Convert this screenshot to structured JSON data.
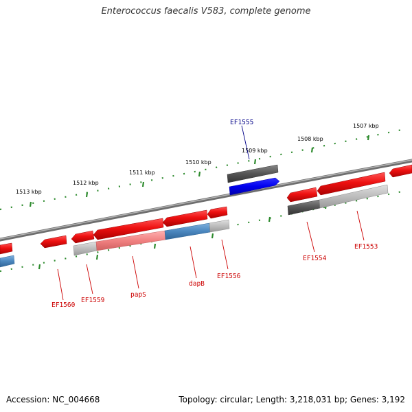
{
  "title": "Enterococcus faecalis V583, complete genome",
  "footer": {
    "accession": "Accession: NC_004668",
    "summary": "Topology: circular; Length: 3,218,031 bp; Genes: 3,192"
  },
  "colors": {
    "backbone": "#8a8a8a",
    "tick": "#2e8b2e",
    "gene_red": "#ee1111",
    "gene_dark": "#555555",
    "gene_blue": "#0000ee",
    "label_red": "#cc0000",
    "label_blue": "#000088"
  },
  "ticks": [
    {
      "label": "1507 kbp"
    },
    {
      "label": "1508 kbp"
    },
    {
      "label": "1509 kbp"
    },
    {
      "label": "1510 kbp"
    },
    {
      "label": "1511 kbp"
    },
    {
      "label": "1512 kbp"
    },
    {
      "label": "1513 kbp"
    }
  ],
  "gene_labels": [
    {
      "name": "EF1555",
      "color": "blue"
    },
    {
      "name": "EF1553",
      "color": "red"
    },
    {
      "name": "EF1554",
      "color": "red"
    },
    {
      "name": "EF1556",
      "color": "red"
    },
    {
      "name": "dapB",
      "color": "red"
    },
    {
      "name": "papS",
      "color": "red"
    },
    {
      "name": "EF1559",
      "color": "red"
    },
    {
      "name": "EF1560",
      "color": "red"
    }
  ]
}
